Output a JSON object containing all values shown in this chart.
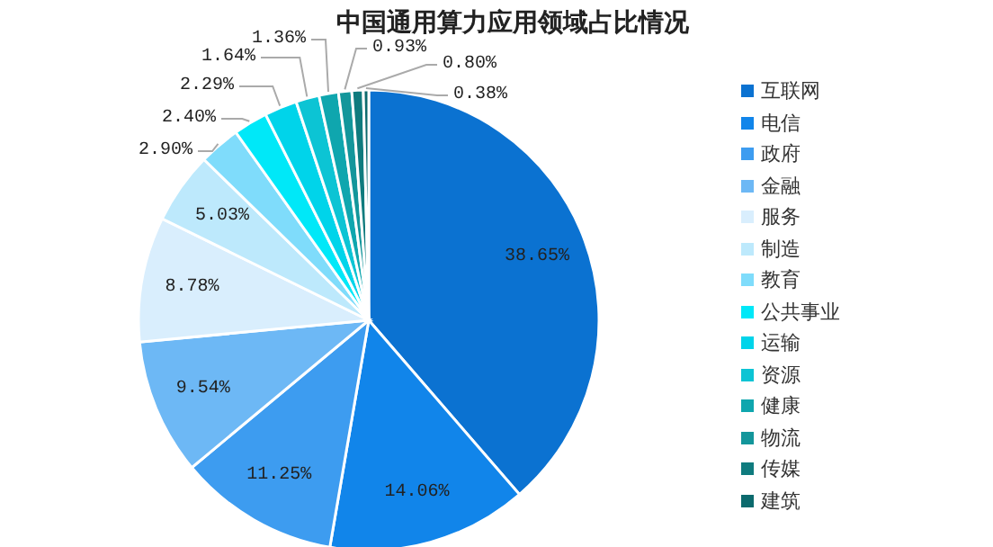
{
  "chart_data": {
    "type": "pie",
    "title": "中国通用算力应用领域占比情况",
    "categories": [
      "互联网",
      "电信",
      "政府",
      "金融",
      "服务",
      "制造",
      "教育",
      "公共事业",
      "运输",
      "资源",
      "健康",
      "物流",
      "传媒",
      "建筑"
    ],
    "values": [
      38.65,
      14.06,
      11.25,
      9.54,
      8.78,
      5.03,
      2.9,
      2.4,
      2.29,
      1.64,
      1.36,
      0.93,
      0.8,
      0.38
    ],
    "value_labels": [
      "38.65%",
      "14.06%",
      "11.25%",
      "9.54%",
      "8.78%",
      "5.03%",
      "2.90%",
      "2.40%",
      "2.29%",
      "1.64%",
      "1.36%",
      "0.93%",
      "0.80%",
      "0.38%"
    ],
    "colors": [
      "#0b72d1",
      "#1185ea",
      "#3d9cf0",
      "#6db8f5",
      "#d9eefd",
      "#bde9fc",
      "#7fdcfb",
      "#00e8f8",
      "#00d4ea",
      "#0cc4d4",
      "#0fa6ae",
      "#13969b",
      "#0f7b7e",
      "#0c6a6d"
    ],
    "legend": "right"
  }
}
